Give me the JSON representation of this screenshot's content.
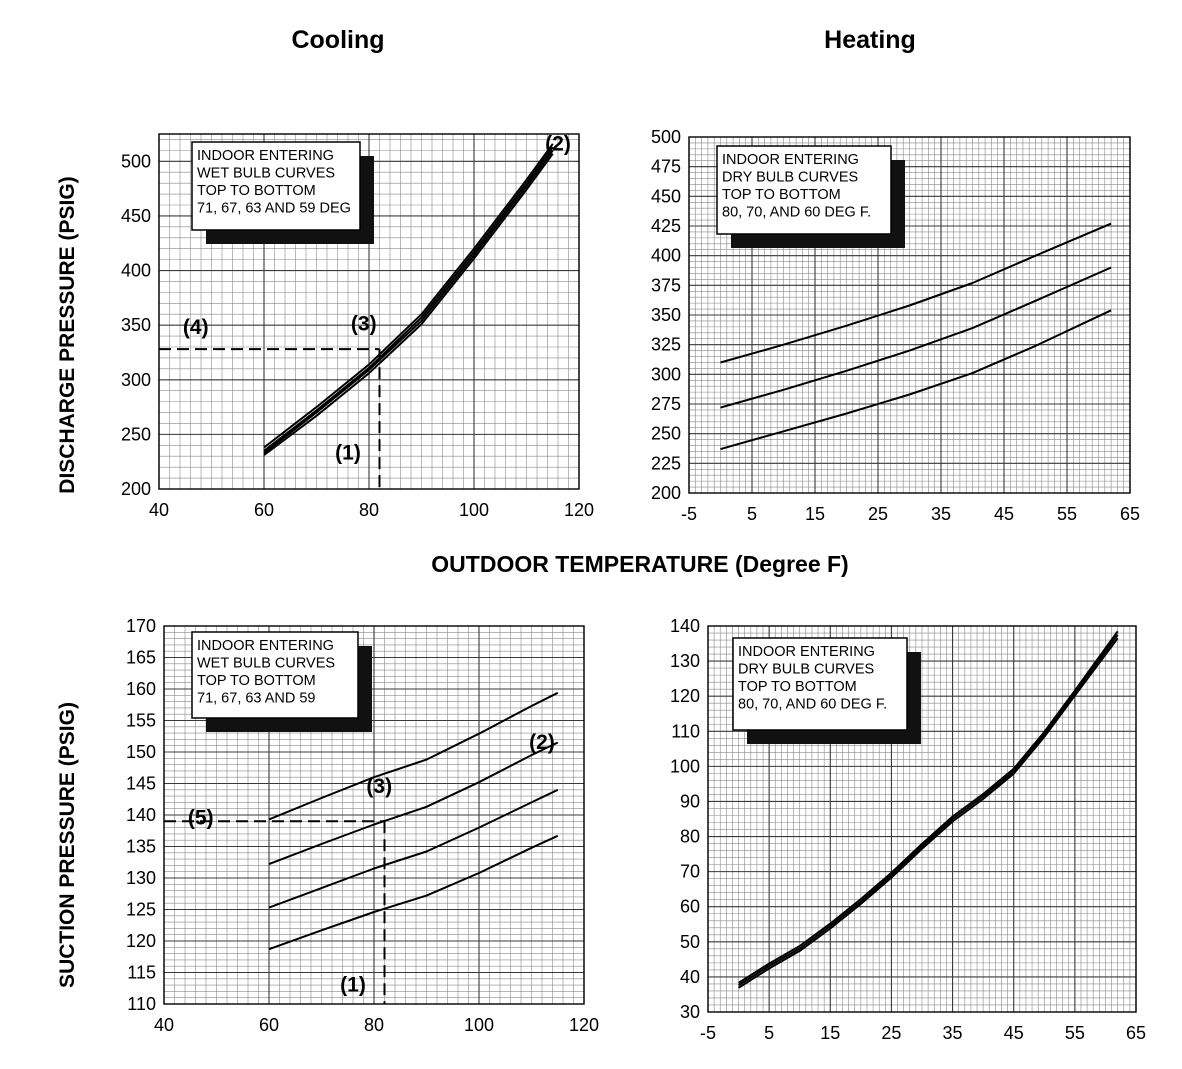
{
  "titles": {
    "cooling": "Cooling",
    "heating": "Heating"
  },
  "shared": {
    "xlabel": "OUTDOOR TEMPERATURE (Degree F)",
    "ylabel_discharge": "DISCHARGE PRESSURE (PSIG)",
    "ylabel_suction": "SUCTION PRESSURE (PSIG)"
  },
  "chart_data": [
    {
      "id": "cool_dis",
      "type": "line",
      "xlim": [
        40,
        120
      ],
      "ylim": [
        200,
        525
      ],
      "xticks": [
        40,
        60,
        80,
        100,
        120
      ],
      "yticks": [
        200,
        250,
        300,
        350,
        400,
        450,
        500
      ],
      "legend_lines": [
        "INDOOR ENTERING",
        "WET BULB CURVES",
        "TOP TO BOTTOM",
        "71, 67, 63 AND 59 DEG"
      ],
      "series": [
        {
          "name": "71",
          "x": [
            60,
            70,
            80,
            90,
            100,
            110,
            115
          ],
          "y": [
            238,
            275,
            314,
            360,
            420,
            483,
            516
          ]
        },
        {
          "name": "67",
          "x": [
            60,
            70,
            80,
            90,
            100,
            110,
            115
          ],
          "y": [
            235,
            272,
            311,
            357,
            417,
            480,
            513
          ]
        },
        {
          "name": "63",
          "x": [
            60,
            70,
            80,
            90,
            100,
            110,
            115
          ],
          "y": [
            233,
            270,
            309,
            354,
            414,
            477,
            510
          ]
        },
        {
          "name": "59",
          "x": [
            60,
            70,
            80,
            90,
            100,
            110,
            115
          ],
          "y": [
            231,
            267,
            306,
            351,
            411,
            474,
            507
          ]
        }
      ],
      "annotations": [
        {
          "text": "(1)",
          "x": 76,
          "y": 227
        },
        {
          "text": "(2)",
          "x": 116,
          "y": 510
        },
        {
          "text": "(3)",
          "x": 79,
          "y": 345
        },
        {
          "text": "(4)",
          "x": 47,
          "y": 342
        }
      ],
      "guide": {
        "x": 82,
        "y": 328
      }
    },
    {
      "id": "heat_dis",
      "type": "line",
      "xlim": [
        -5,
        65
      ],
      "ylim": [
        200,
        500
      ],
      "xticks": [
        -5,
        5,
        15,
        25,
        35,
        45,
        55,
        65
      ],
      "yticks": [
        200,
        225,
        250,
        275,
        300,
        325,
        350,
        375,
        400,
        425,
        450,
        475,
        500
      ],
      "legend_lines": [
        "INDOOR ENTERING",
        "DRY BULB CURVES",
        "TOP TO BOTTOM",
        "80, 70, AND 60 DEG F."
      ],
      "series": [
        {
          "name": "80",
          "x": [
            0,
            10,
            20,
            30,
            40,
            50,
            62
          ],
          "y": [
            310,
            325,
            341,
            358,
            377,
            400,
            427
          ]
        },
        {
          "name": "70",
          "x": [
            0,
            10,
            20,
            30,
            40,
            50,
            62
          ],
          "y": [
            272,
            287,
            303,
            320,
            339,
            362,
            390
          ]
        },
        {
          "name": "60",
          "x": [
            0,
            10,
            20,
            30,
            40,
            50,
            62
          ],
          "y": [
            237,
            252,
            267,
            283,
            301,
            324,
            354
          ]
        }
      ]
    },
    {
      "id": "cool_suc",
      "type": "line",
      "xlim": [
        40,
        120
      ],
      "ylim": [
        110,
        170
      ],
      "xticks": [
        40,
        60,
        80,
        100,
        120
      ],
      "yticks": [
        110,
        115,
        120,
        125,
        130,
        135,
        140,
        145,
        150,
        155,
        160,
        165,
        170
      ],
      "legend_lines": [
        "INDOOR ENTERING",
        "WET BULB CURVES",
        "TOP TO BOTTOM",
        "71, 67, 63 AND 59"
      ],
      "series": [
        {
          "name": "71",
          "x": [
            60,
            70,
            80,
            90,
            100,
            110,
            115
          ],
          "y": [
            139.3,
            142.7,
            146.0,
            148.8,
            152.9,
            157.3,
            159.4
          ]
        },
        {
          "name": "67",
          "x": [
            60,
            70,
            80,
            90,
            100,
            110,
            115
          ],
          "y": [
            132.2,
            135.4,
            138.5,
            141.3,
            145.2,
            149.5,
            151.5
          ]
        },
        {
          "name": "63",
          "x": [
            60,
            70,
            80,
            90,
            100,
            110,
            115
          ],
          "y": [
            125.3,
            128.4,
            131.5,
            134.2,
            138.0,
            142.0,
            144.0
          ]
        },
        {
          "name": "59",
          "x": [
            60,
            70,
            80,
            90,
            100,
            110,
            115
          ],
          "y": [
            118.7,
            121.7,
            124.6,
            127.2,
            130.8,
            134.8,
            136.7
          ]
        }
      ],
      "annotations": [
        {
          "text": "(1)",
          "x": 76,
          "y": 112
        },
        {
          "text": "(2)",
          "x": 112,
          "y": 150.5
        },
        {
          "text": "(3)",
          "x": 81,
          "y": 143.5
        },
        {
          "text": "(5)",
          "x": 47,
          "y": 138.5
        }
      ],
      "guide": {
        "x": 82,
        "y": 139
      }
    },
    {
      "id": "heat_suc",
      "type": "line",
      "xlim": [
        -5,
        65
      ],
      "ylim": [
        30,
        140
      ],
      "xticks": [
        -5,
        5,
        15,
        25,
        35,
        45,
        55,
        65
      ],
      "yticks": [
        30,
        40,
        50,
        60,
        70,
        80,
        90,
        100,
        110,
        120,
        130,
        140
      ],
      "legend_lines": [
        "INDOOR ENTERING",
        "DRY BULB CURVES",
        "TOP TO BOTTOM",
        "80, 70, AND 60 DEG F."
      ],
      "series": [
        {
          "name": "80",
          "x": [
            0,
            5,
            10,
            15,
            20,
            25,
            30,
            35,
            40,
            45,
            50,
            55,
            62
          ],
          "y": [
            38.3,
            43.8,
            48.8,
            55.2,
            62.2,
            69.7,
            77.9,
            85.7,
            92.1,
            99.3,
            109.8,
            121.6,
            138.5
          ]
        },
        {
          "name": "70",
          "x": [
            0,
            5,
            10,
            15,
            20,
            25,
            30,
            35,
            40,
            45,
            50,
            55,
            62
          ],
          "y": [
            37.6,
            43.1,
            48.1,
            54.5,
            61.5,
            69.0,
            77.2,
            85.0,
            91.4,
            98.6,
            109.1,
            120.9,
            137.5
          ]
        },
        {
          "name": "60",
          "x": [
            0,
            5,
            10,
            15,
            20,
            25,
            30,
            35,
            40,
            45,
            50,
            55,
            62
          ],
          "y": [
            36.9,
            42.4,
            47.4,
            53.8,
            60.8,
            68.3,
            76.5,
            84.3,
            90.7,
            97.9,
            108.4,
            120.2,
            136.5
          ]
        }
      ]
    }
  ]
}
